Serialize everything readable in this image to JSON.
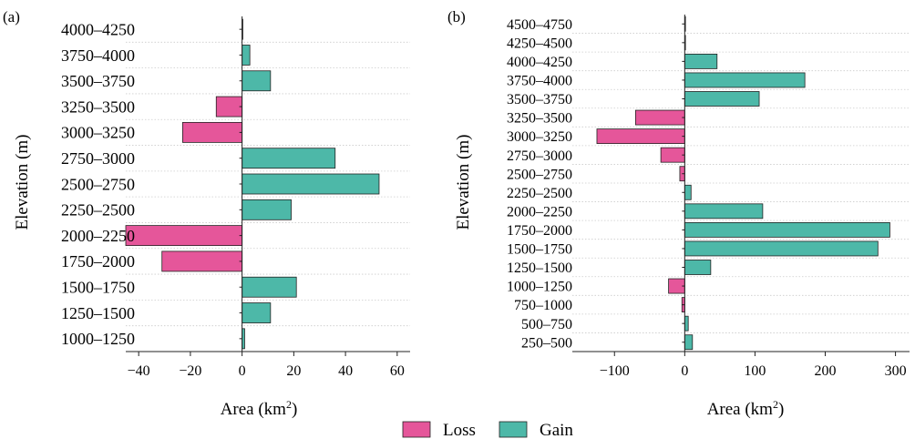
{
  "legend": {
    "loss_label": "Loss",
    "gain_label": "Gain"
  },
  "colors": {
    "loss": "#E5569A",
    "gain": "#4DB8A8",
    "grid": "#cccccc"
  },
  "chart_data": [
    {
      "type": "bar",
      "orientation": "horizontal",
      "panel_label": "(a)",
      "xlabel": "Area (km²)",
      "ylabel": "Elevation (m)",
      "xlim": [
        -45,
        65
      ],
      "xticks": [
        -40,
        -20,
        0,
        20,
        40,
        60
      ],
      "xtick_labels": [
        "−40",
        "−20",
        "0",
        "20",
        "40",
        "60"
      ],
      "categories": [
        "4000–4250",
        "3750–4000",
        "3500–3750",
        "3250–3500",
        "3000–3250",
        "2750–3000",
        "2500–2750",
        "2250–2500",
        "2000–2250",
        "1750–2000",
        "1500–1750",
        "1250–1500",
        "1000–1250"
      ],
      "values": [
        0,
        3,
        11,
        -10,
        -23,
        36,
        53,
        19,
        -45,
        -31,
        21,
        11,
        1
      ],
      "legend": [
        "Loss",
        "Gain"
      ],
      "grid": "horizontal dotted"
    },
    {
      "type": "bar",
      "orientation": "horizontal",
      "panel_label": "(b)",
      "xlabel": "Area (km²)",
      "ylabel": "Elevation (m)",
      "xlim": [
        -160,
        320
      ],
      "xticks": [
        -100,
        0,
        100,
        200,
        300
      ],
      "xtick_labels": [
        "−100",
        "0",
        "100",
        "200",
        "300"
      ],
      "categories": [
        "4500–4750",
        "4250–4500",
        "4000–4250",
        "3750–4000",
        "3500–3750",
        "3250–3500",
        "3000–3250",
        "2750–3000",
        "2500–2750",
        "2250–2500",
        "2000–2250",
        "1750–2000",
        "1500–1750",
        "1250–1500",
        "1000–1250",
        "750–1000",
        "500–750",
        "250–500"
      ],
      "values": [
        0,
        1,
        46,
        171,
        106,
        -70,
        -125,
        -34,
        -7,
        9,
        111,
        292,
        275,
        37,
        -23,
        -4,
        5,
        11
      ],
      "legend": [
        "Loss",
        "Gain"
      ],
      "grid": "horizontal dotted"
    }
  ]
}
